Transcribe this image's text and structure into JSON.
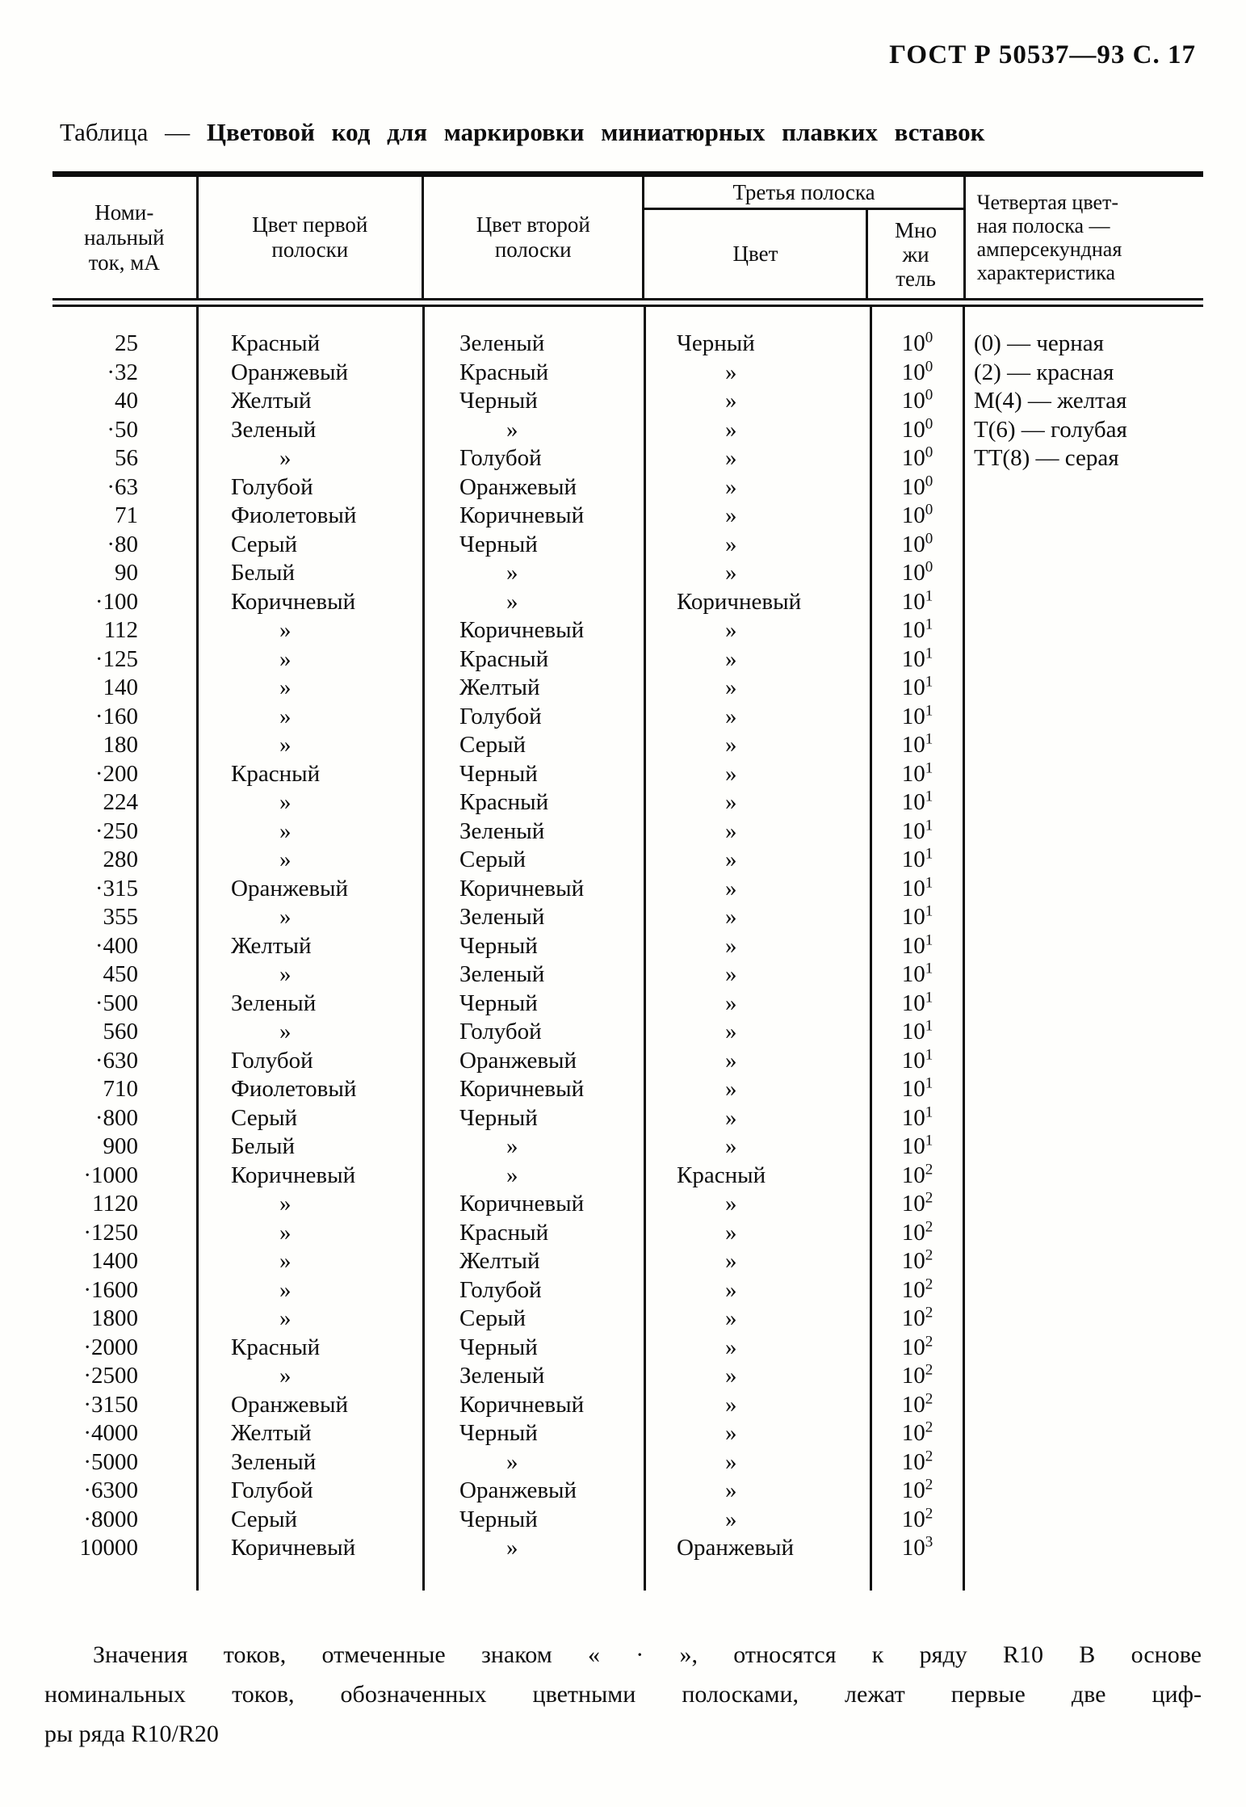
{
  "doc": {
    "page_header": "ГОСТ Р 50537—93 С. 17",
    "title_prefix": "Таблица —",
    "title_main": "Цветовой код для маркировки миниатюрных плавких вставок"
  },
  "table": {
    "col_headers": {
      "current": "Номи-\nнальный\nток, мА",
      "first_stripe": "Цвет первой\nполоски",
      "second_stripe": "Цвет второй\nполоски",
      "third_stripe_group": "Третья полоска",
      "third_stripe_color": "Цвет",
      "multiplier": "Мно\nжи\nтель",
      "fourth_stripe": "Четвертая цвет-\nная полоска —\nамперсекундная\nхарактеристика"
    },
    "continuation_mark": "»",
    "rows": [
      {
        "current": "25",
        "first": "Красный",
        "second": "Зеленый",
        "third": "Черный",
        "mult_base": "10",
        "mult_exp": "0",
        "note": "(0) — черная"
      },
      {
        "current": "·32",
        "first": "Оранжевый",
        "second": "Красный",
        "third": "»",
        "mult_base": "10",
        "mult_exp": "0",
        "note": "(2) — красная"
      },
      {
        "current": "40",
        "first": "Желтый",
        "second": "Черный",
        "third": "»",
        "mult_base": "10",
        "mult_exp": "0",
        "note": "М(4) — желтая"
      },
      {
        "current": "·50",
        "first": "Зеленый",
        "second": "»",
        "third": "»",
        "mult_base": "10",
        "mult_exp": "0",
        "note": "Т(6) — голубая"
      },
      {
        "current": "56",
        "first": "»",
        "second": "Голубой",
        "third": "»",
        "mult_base": "10",
        "mult_exp": "0",
        "note": "ТТ(8) — серая"
      },
      {
        "current": "·63",
        "first": "Голубой",
        "second": "Оранжевый",
        "third": "»",
        "mult_base": "10",
        "mult_exp": "0",
        "note": ""
      },
      {
        "current": "71",
        "first": "Фиолетовый",
        "second": "Коричневый",
        "third": "»",
        "mult_base": "10",
        "mult_exp": "0",
        "note": ""
      },
      {
        "current": "·80",
        "first": "Серый",
        "second": "Черный",
        "third": "»",
        "mult_base": "10",
        "mult_exp": "0",
        "note": ""
      },
      {
        "current": "90",
        "first": "Белый",
        "second": "»",
        "third": "»",
        "mult_base": "10",
        "mult_exp": "0",
        "note": ""
      },
      {
        "current": "·100",
        "first": "Коричневый",
        "second": "»",
        "third": "Коричневый",
        "mult_base": "10",
        "mult_exp": "1",
        "note": ""
      },
      {
        "current": "112",
        "first": "»",
        "second": "Коричневый",
        "third": "»",
        "mult_base": "10",
        "mult_exp": "1",
        "note": ""
      },
      {
        "current": "·125",
        "first": "»",
        "second": "Красный",
        "third": "»",
        "mult_base": "10",
        "mult_exp": "1",
        "note": ""
      },
      {
        "current": "140",
        "first": "»",
        "second": "Желтый",
        "third": "»",
        "mult_base": "10",
        "mult_exp": "1",
        "note": ""
      },
      {
        "current": "·160",
        "first": "»",
        "second": "Голубой",
        "third": "»",
        "mult_base": "10",
        "mult_exp": "1",
        "note": ""
      },
      {
        "current": "180",
        "first": "»",
        "second": "Серый",
        "third": "»",
        "mult_base": "10",
        "mult_exp": "1",
        "note": ""
      },
      {
        "current": "·200",
        "first": "Красный",
        "second": "Черный",
        "third": "»",
        "mult_base": "10",
        "mult_exp": "1",
        "note": ""
      },
      {
        "current": "224",
        "first": "»",
        "second": "Красный",
        "third": "»",
        "mult_base": "10",
        "mult_exp": "1",
        "note": ""
      },
      {
        "current": "·250",
        "first": "»",
        "second": "Зеленый",
        "third": "»",
        "mult_base": "10",
        "mult_exp": "1",
        "note": ""
      },
      {
        "current": "280",
        "first": "»",
        "second": "Серый",
        "third": "»",
        "mult_base": "10",
        "mult_exp": "1",
        "note": ""
      },
      {
        "current": "·315",
        "first": "Оранжевый",
        "second": "Коричневый",
        "third": "»",
        "mult_base": "10",
        "mult_exp": "1",
        "note": ""
      },
      {
        "current": "355",
        "first": "»",
        "second": "Зеленый",
        "third": "»",
        "mult_base": "10",
        "mult_exp": "1",
        "note": ""
      },
      {
        "current": "·400",
        "first": "Желтый",
        "second": "Черный",
        "third": "»",
        "mult_base": "10",
        "mult_exp": "1",
        "note": ""
      },
      {
        "current": "450",
        "first": "»",
        "second": "Зеленый",
        "third": "»",
        "mult_base": "10",
        "mult_exp": "1",
        "note": ""
      },
      {
        "current": "·500",
        "first": "Зеленый",
        "second": "Черный",
        "third": "»",
        "mult_base": "10",
        "mult_exp": "1",
        "note": ""
      },
      {
        "current": "560",
        "first": "»",
        "second": "Голубой",
        "third": "»",
        "mult_base": "10",
        "mult_exp": "1",
        "note": ""
      },
      {
        "current": "·630",
        "first": "Голубой",
        "second": "Оранжевый",
        "third": "»",
        "mult_base": "10",
        "mult_exp": "1",
        "note": ""
      },
      {
        "current": "710",
        "first": "Фиолетовый",
        "second": "Коричневый",
        "third": "»",
        "mult_base": "10",
        "mult_exp": "1",
        "note": ""
      },
      {
        "current": "·800",
        "first": "Серый",
        "second": "Черный",
        "third": "»",
        "mult_base": "10",
        "mult_exp": "1",
        "note": ""
      },
      {
        "current": "900",
        "first": "Белый",
        "second": "»",
        "third": "»",
        "mult_base": "10",
        "mult_exp": "1",
        "note": ""
      },
      {
        "current": "·1000",
        "first": "Коричневый",
        "second": "»",
        "third": "Красный",
        "mult_base": "10",
        "mult_exp": "2",
        "note": ""
      },
      {
        "current": "1120",
        "first": "»",
        "second": "Коричневый",
        "third": "»",
        "mult_base": "10",
        "mult_exp": "2",
        "note": ""
      },
      {
        "current": "·1250",
        "first": "»",
        "second": "Красный",
        "third": "»",
        "mult_base": "10",
        "mult_exp": "2",
        "note": ""
      },
      {
        "current": "1400",
        "first": "»",
        "second": "Желтый",
        "third": "»",
        "mult_base": "10",
        "mult_exp": "2",
        "note": ""
      },
      {
        "current": "·1600",
        "first": "»",
        "second": "Голубой",
        "third": "»",
        "mult_base": "10",
        "mult_exp": "2",
        "note": ""
      },
      {
        "current": "1800",
        "first": "»",
        "second": "Серый",
        "third": "»",
        "mult_base": "10",
        "mult_exp": "2",
        "note": ""
      },
      {
        "current": "·2000",
        "first": "Красный",
        "second": "Черный",
        "third": "»",
        "mult_base": "10",
        "mult_exp": "2",
        "note": ""
      },
      {
        "current": "·2500",
        "first": "»",
        "second": "Зеленый",
        "third": "»",
        "mult_base": "10",
        "mult_exp": "2",
        "note": ""
      },
      {
        "current": "·3150",
        "first": "Оранжевый",
        "second": "Коричневый",
        "third": "»",
        "mult_base": "10",
        "mult_exp": "2",
        "note": ""
      },
      {
        "current": "·4000",
        "first": "Желтый",
        "second": "Черный",
        "third": "»",
        "mult_base": "10",
        "mult_exp": "2",
        "note": ""
      },
      {
        "current": "·5000",
        "first": "Зеленый",
        "second": "»",
        "third": "»",
        "mult_base": "10",
        "mult_exp": "2",
        "note": ""
      },
      {
        "current": "·6300",
        "first": "Голубой",
        "second": "Оранжевый",
        "third": "»",
        "mult_base": "10",
        "mult_exp": "2",
        "note": ""
      },
      {
        "current": "·8000",
        "first": "Серый",
        "second": "Черный",
        "third": "»",
        "mult_base": "10",
        "mult_exp": "2",
        "note": ""
      },
      {
        "current": "10000",
        "first": "Коричневый",
        "second": "»",
        "third": "Оранжевый",
        "mult_base": "10",
        "mult_exp": "3",
        "note": ""
      }
    ]
  },
  "footnote": {
    "lines": [
      "Значения токов, отмеченные знаком « · », относятся к ряду R10 В основе",
      "номинальных токов, обозначенных цветными полосками, лежат первые две циф-",
      "ры ряда R10/R20"
    ]
  }
}
